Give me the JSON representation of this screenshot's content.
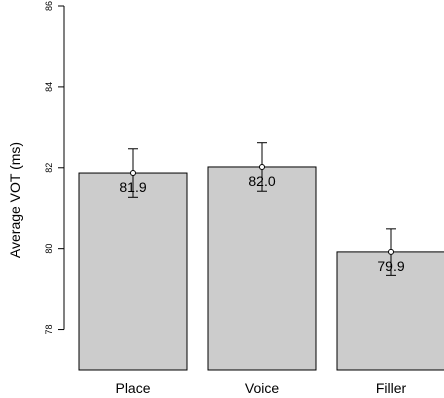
{
  "chart_data": {
    "type": "bar",
    "title": "",
    "xlabel": "",
    "ylabel": "Average VOT (ms)",
    "categories": [
      "Place",
      "Voice",
      "Filler"
    ],
    "values": [
      81.87,
      82.02,
      79.92
    ],
    "value_labels": [
      "81.9",
      "82.0",
      "79.9"
    ],
    "error_upper": [
      82.47,
      82.62,
      80.49
    ],
    "error_lower": [
      81.27,
      81.42,
      79.34
    ],
    "ylim": [
      77,
      86
    ],
    "yticks": [
      78,
      80,
      82,
      84,
      86
    ],
    "ytick_labels": [
      "78",
      "80",
      "82",
      "84",
      "86"
    ],
    "bar_color": "#cccccc",
    "grid": false,
    "legend": "none"
  }
}
